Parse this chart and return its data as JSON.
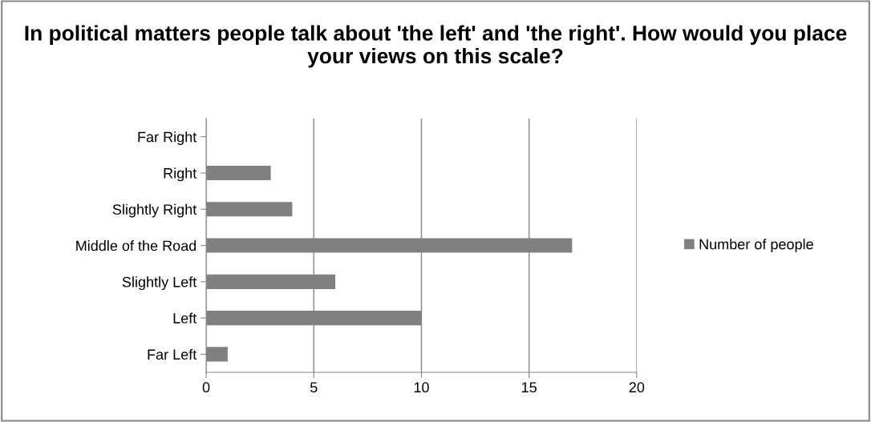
{
  "chart_data": {
    "type": "bar",
    "orientation": "horizontal",
    "title": "In political matters people talk about 'the left' and 'the right'. How would you place your views on this scale?",
    "categories": [
      "Far Right",
      "Right",
      "Slightly Right",
      "Middle of the Road",
      "Slightly Left",
      "Left",
      "Far Left"
    ],
    "series": [
      {
        "name": "Number of people",
        "color": "#808080",
        "values": [
          0,
          3,
          4,
          17,
          6,
          10,
          1
        ]
      }
    ],
    "xlim": [
      0,
      20
    ],
    "xticks": [
      0,
      5,
      10,
      15,
      20
    ],
    "grid": "x",
    "legend": "right"
  }
}
